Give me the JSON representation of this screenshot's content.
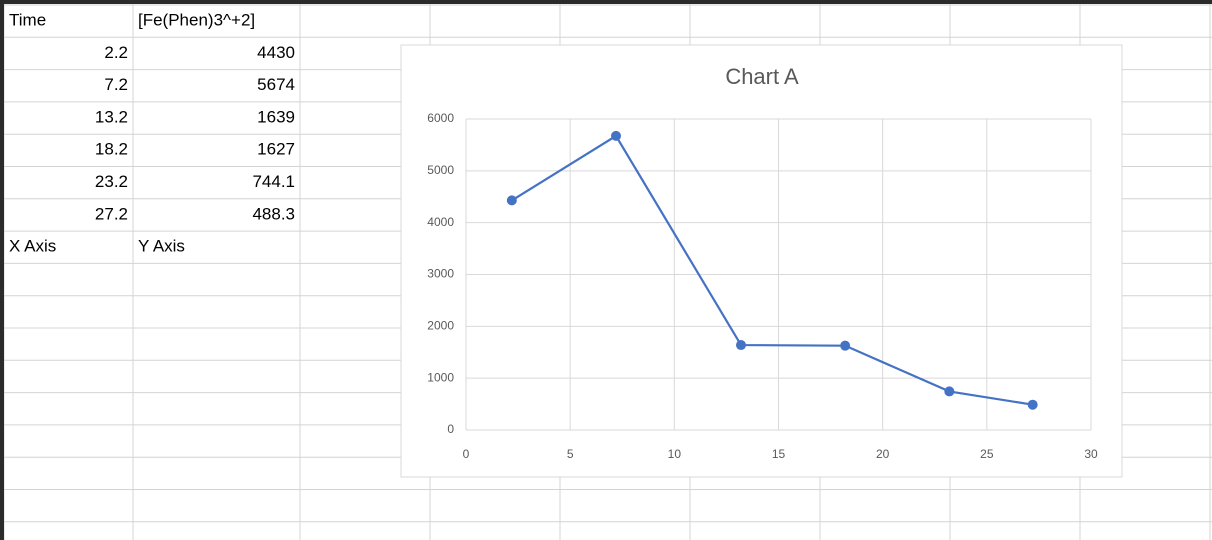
{
  "sheet": {
    "header": [
      "Time",
      "[Fe(Phen)3^+2]"
    ],
    "rows": [
      [
        2.2,
        4430
      ],
      [
        7.2,
        5674
      ],
      [
        13.2,
        1639
      ],
      [
        18.2,
        1627
      ],
      [
        23.2,
        744.1
      ],
      [
        27.2,
        488.3
      ]
    ],
    "footer": [
      "X Axis",
      "Y Axis"
    ]
  },
  "chart_data": {
    "type": "line",
    "title": "Chart A",
    "x": [
      2.2,
      7.2,
      13.2,
      18.2,
      23.2,
      27.2
    ],
    "values": [
      4430,
      5674,
      1639,
      1627,
      744.1,
      488.3
    ],
    "color": "#4472c4",
    "xlim": [
      0,
      30
    ],
    "xticks": [
      0,
      5,
      10,
      15,
      20,
      25,
      30
    ],
    "ylim": [
      0,
      6000
    ],
    "yticks": [
      0,
      1000,
      2000,
      3000,
      4000,
      5000,
      6000
    ],
    "grid": true
  }
}
